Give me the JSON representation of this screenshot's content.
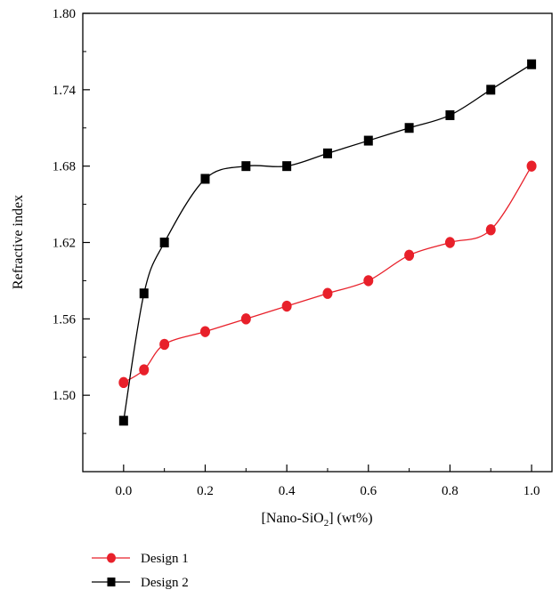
{
  "chart_data": {
    "type": "line",
    "xlabel": "[Nano-SiO",
    "xlabel_sub": "2",
    "xlabel_tail": "] (wt%)",
    "ylabel": "Refractive index",
    "xlim": [
      -0.1,
      1.05
    ],
    "ylim": [
      1.44,
      1.8
    ],
    "x_ticks": [
      "0.0",
      "0.2",
      "0.4",
      "0.6",
      "0.8",
      "1.0"
    ],
    "y_ticks": [
      "1.50",
      "1.56",
      "1.62",
      "1.68",
      "1.74",
      "1.80"
    ],
    "grid": false,
    "legend_position": "bottom-left",
    "series": [
      {
        "name": "Design 1",
        "marker": "circle",
        "color": "#e8202a",
        "x": [
          0.0,
          0.05,
          0.1,
          0.2,
          0.3,
          0.4,
          0.5,
          0.6,
          0.7,
          0.8,
          0.9,
          1.0
        ],
        "y": [
          1.51,
          1.52,
          1.54,
          1.55,
          1.56,
          1.57,
          1.58,
          1.59,
          1.61,
          1.62,
          1.63,
          1.68
        ]
      },
      {
        "name": "Design 2",
        "marker": "square",
        "color": "#000000",
        "x": [
          0.0,
          0.05,
          0.1,
          0.2,
          0.3,
          0.4,
          0.5,
          0.6,
          0.7,
          0.8,
          0.9,
          1.0
        ],
        "y": [
          1.48,
          1.58,
          1.62,
          1.67,
          1.68,
          1.68,
          1.69,
          1.7,
          1.71,
          1.72,
          1.74,
          1.76
        ]
      }
    ]
  }
}
